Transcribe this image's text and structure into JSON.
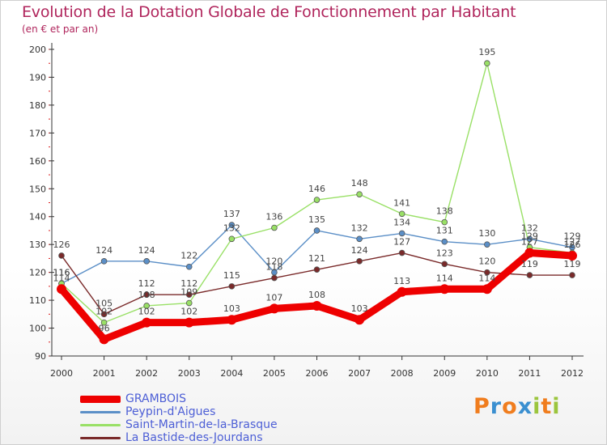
{
  "chart_data": {
    "type": "line",
    "title": "Evolution de la Dotation Globale de Fonctionnement par Habitant",
    "subtitle": "(en € et par an)",
    "xlabel": "",
    "ylabel": "",
    "ylim": [
      90,
      200
    ],
    "yticks": [
      90,
      100,
      110,
      120,
      130,
      140,
      150,
      160,
      170,
      180,
      190,
      200
    ],
    "categories": [
      "2000",
      "2001",
      "2002",
      "2003",
      "2004",
      "2005",
      "2006",
      "2007",
      "2008",
      "2009",
      "2010",
      "2011",
      "2012"
    ],
    "series": [
      {
        "name": "GRAMBOIS",
        "color": "#ee0000",
        "weight": "thick",
        "values": [
          114,
          96,
          102,
          102,
          103,
          107,
          108,
          103,
          113,
          114,
          114,
          127,
          126
        ],
        "labels": [
          "114",
          "96",
          "102",
          "102",
          "103",
          "107",
          "108",
          "103",
          "113",
          "114",
          "114",
          "127",
          "126"
        ]
      },
      {
        "name": "Peypin-d'Aigues",
        "color": "#5b8fc7",
        "weight": "thin",
        "values": [
          116,
          124,
          124,
          122,
          137,
          120,
          135,
          132,
          134,
          131,
          130,
          132,
          129
        ],
        "labels": [
          "116",
          "124",
          "124",
          "122",
          "137",
          "120",
          "135",
          "132",
          "134",
          "131",
          "130",
          "132",
          "129"
        ]
      },
      {
        "name": "Saint-Martin-de-la-Brasque",
        "color": "#99e066",
        "weight": "thin",
        "values": [
          116,
          102,
          108,
          109,
          132,
          136,
          146,
          148,
          141,
          138,
          195,
          129,
          127
        ],
        "labels": [
          "116",
          "102",
          "108",
          "109",
          "132",
          "136",
          "146",
          "148",
          "141",
          "138",
          "195",
          "129",
          "127"
        ]
      },
      {
        "name": "La Bastide-des-Jourdans",
        "color": "#7a2a2a",
        "weight": "thin",
        "values": [
          126,
          105,
          112,
          112,
          115,
          118,
          121,
          124,
          127,
          123,
          120,
          119,
          119
        ],
        "labels": [
          "126",
          "105",
          "112",
          "112",
          "115",
          "118",
          "121",
          "124",
          "127",
          "123",
          "120",
          "119",
          "119"
        ]
      }
    ],
    "legend_position": "bottom-left",
    "grid": false
  },
  "logo": {
    "letters": [
      "P",
      "r",
      "o",
      "x",
      "i",
      "t",
      "i"
    ],
    "colors": [
      "#f07d1e",
      "#3a8fd0",
      "#f07d1e",
      "#3a8fd0",
      "#9bc53d",
      "#f07d1e",
      "#9bc53d"
    ]
  }
}
